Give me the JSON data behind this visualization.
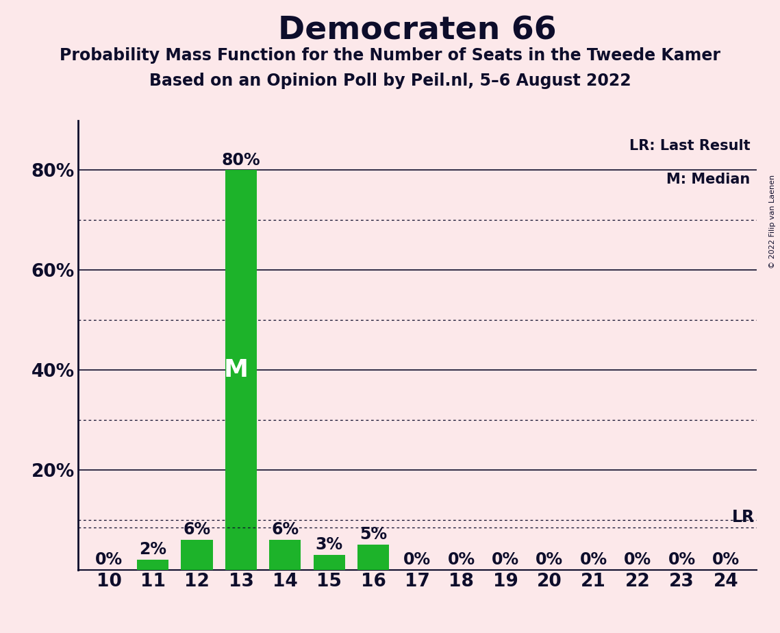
{
  "title": "Democraten 66",
  "subtitle1": "Probability Mass Function for the Number of Seats in the Tweede Kamer",
  "subtitle2": "Based on an Opinion Poll by Peil.nl, 5–6 August 2022",
  "copyright": "© 2022 Filip van Laenen",
  "seats": [
    10,
    11,
    12,
    13,
    14,
    15,
    16,
    17,
    18,
    19,
    20,
    21,
    22,
    23,
    24
  ],
  "probabilities": [
    0.0,
    0.02,
    0.06,
    0.8,
    0.06,
    0.03,
    0.05,
    0.0,
    0.0,
    0.0,
    0.0,
    0.0,
    0.0,
    0.0,
    0.0
  ],
  "bar_color": "#1db32a",
  "median_seat": 13,
  "last_result_prob": 0.085,
  "ylim_max": 0.9,
  "yticks": [
    0.2,
    0.4,
    0.6,
    0.8
  ],
  "ytick_labels": [
    "20%",
    "40%",
    "60%",
    "80%"
  ],
  "dotted_yticks": [
    0.1,
    0.3,
    0.5,
    0.7
  ],
  "background_color": "#fce8ea",
  "text_color": "#0d0d2b",
  "legend_lr": "LR: Last Result",
  "legend_m": "M: Median",
  "title_fontsize": 34,
  "subtitle_fontsize": 17,
  "axis_fontsize": 19,
  "bar_label_fontsize": 17,
  "median_label_fontsize": 26
}
